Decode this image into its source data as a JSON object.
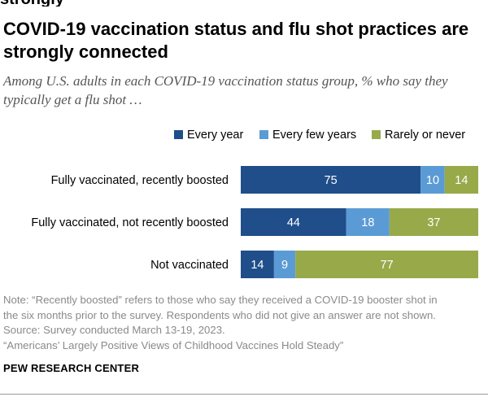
{
  "header_fragment": "strongly",
  "title": "COVID-19 vaccination status and flu shot practices are strongly connected",
  "subtitle": "Among U.S. adults in each COVID-19 vaccination status group, % who say they typically get a flu shot …",
  "chart_data": {
    "type": "bar",
    "orientation": "horizontal",
    "stacked": true,
    "categories": [
      "Fully vaccinated, recently boosted",
      "Fully vaccinated, not recently boosted",
      "Not vaccinated"
    ],
    "series": [
      {
        "name": "Every year",
        "color": "#1f4e8a",
        "values": [
          75,
          44,
          14
        ]
      },
      {
        "name": "Every few years",
        "color": "#5b9bd5",
        "values": [
          10,
          18,
          9
        ]
      },
      {
        "name": "Rarely or never",
        "color": "#98a94a",
        "values": [
          14,
          37,
          77
        ]
      }
    ],
    "legend_position": "top-right",
    "grid": false
  },
  "notes": [
    "Note: “Recently boosted” refers to those who say they received a COVID-19 booster shot in",
    "the six months prior to the survey. Respondents who did not give an answer are not shown.",
    "Source: Survey conducted March 13-19, 2023.",
    "“Americans’ Largely Positive Views of Childhood Vaccines Hold Steady”"
  ],
  "brand": "PEW RESEARCH CENTER"
}
